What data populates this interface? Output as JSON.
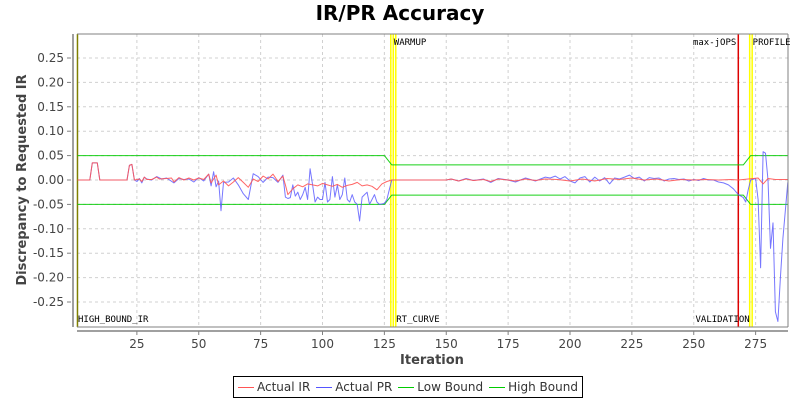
{
  "title": "IR/PR Accuracy",
  "legend": [
    {
      "label": "Actual IR",
      "color": "#ff5555"
    },
    {
      "label": "Actual PR",
      "color": "#5555ff"
    },
    {
      "label": "Low Bound",
      "color": "#00cc00"
    },
    {
      "label": "High Bound",
      "color": "#00cc00"
    }
  ],
  "chart_data": {
    "type": "line",
    "title": "IR/PR Accuracy",
    "xlabel": "Iteration",
    "ylabel": "Discrepancy to Requested IR",
    "xlim": [
      0,
      288
    ],
    "ylim": [
      -0.3,
      0.3
    ],
    "xticks": [
      25,
      50,
      75,
      100,
      125,
      150,
      175,
      200,
      225,
      250,
      275
    ],
    "yticks": [
      0.25,
      0.2,
      0.15,
      0.1,
      0.05,
      0.0,
      -0.05,
      -0.1,
      -0.15,
      -0.2,
      -0.25
    ],
    "ytick_labels": [
      "0.25",
      "0.20",
      "0.15",
      "0.10",
      "0.05",
      "0.00",
      "-0.05",
      "-0.10",
      "-0.15",
      "-0.20",
      "-0.25"
    ],
    "grid": true,
    "legend_position": "bottom",
    "markers": [
      {
        "label": "HIGH_BOUND_IR",
        "x": 1,
        "color": "#808000",
        "label_pos": "bottom"
      },
      {
        "label": "WARMUP",
        "x": 128,
        "color": "#ffff00",
        "label_pos": "top"
      },
      {
        "label": "RT_CURVE",
        "x": 129,
        "color": "#ffff00",
        "label_pos": "bottom"
      },
      {
        "label": "max-jOPS",
        "x": 268,
        "color": "#dd0000",
        "label_pos": "top-left"
      },
      {
        "label": "VALIDATION",
        "x": 273,
        "color": "#ffff00",
        "label_pos": "bottom-left"
      },
      {
        "label": "PROFILE",
        "x": 273,
        "color": "#ffff00",
        "label_pos": "top"
      }
    ],
    "series": [
      {
        "name": "Actual IR",
        "color": "#ff5555",
        "points": [
          [
            1,
            0
          ],
          [
            6,
            0
          ],
          [
            7,
            0.035
          ],
          [
            9,
            0.035
          ],
          [
            10,
            0
          ],
          [
            21,
            0
          ],
          [
            22,
            0.03
          ],
          [
            23,
            0.032
          ],
          [
            24,
            0
          ],
          [
            26,
            0.002
          ],
          [
            27,
            -0.003
          ],
          [
            28,
            0.006
          ],
          [
            29,
            0.001
          ],
          [
            31,
            0.001
          ],
          [
            33,
            0.006
          ],
          [
            34,
            0.002
          ],
          [
            37,
            0.003
          ],
          [
            39,
            0.004
          ],
          [
            40,
            -0.004
          ],
          [
            42,
            0.005
          ],
          [
            44,
            0
          ],
          [
            46,
            0.004
          ],
          [
            48,
            0
          ],
          [
            50,
            0.004
          ],
          [
            52,
            0.001
          ],
          [
            54,
            0.012
          ],
          [
            55,
            -0.006
          ],
          [
            57,
            0.01
          ],
          [
            58,
            -0.01
          ],
          [
            60,
            -0.002
          ],
          [
            62,
            -0.012
          ],
          [
            64,
            -0.004
          ],
          [
            66,
            0.005
          ],
          [
            68,
            -0.005
          ],
          [
            70,
            -0.015
          ],
          [
            72,
            0.002
          ],
          [
            74,
            -0.003
          ],
          [
            76,
            0.008
          ],
          [
            78,
            0.002
          ],
          [
            80,
            0.012
          ],
          [
            82,
            -0.003
          ],
          [
            84,
            0.008
          ],
          [
            85,
            -0.01
          ],
          [
            86,
            -0.03
          ],
          [
            88,
            -0.018
          ],
          [
            90,
            -0.01
          ],
          [
            92,
            -0.014
          ],
          [
            94,
            -0.008
          ],
          [
            96,
            -0.01
          ],
          [
            98,
            -0.012
          ],
          [
            100,
            -0.007
          ],
          [
            102,
            -0.01
          ],
          [
            104,
            -0.013
          ],
          [
            106,
            -0.009
          ],
          [
            108,
            -0.015
          ],
          [
            110,
            -0.011
          ],
          [
            112,
            -0.009
          ],
          [
            114,
            -0.005
          ],
          [
            116,
            -0.012
          ],
          [
            118,
            -0.01
          ],
          [
            120,
            -0.013
          ],
          [
            122,
            -0.02
          ],
          [
            124,
            -0.008
          ],
          [
            126,
            -0.003
          ],
          [
            128,
            0
          ],
          [
            150,
            0
          ],
          [
            152,
            0.002
          ],
          [
            155,
            -0.002
          ],
          [
            158,
            0.002
          ],
          [
            161,
            -0.001
          ],
          [
            165,
            0.001
          ],
          [
            168,
            -0.003
          ],
          [
            171,
            0.002
          ],
          [
            175,
            0
          ],
          [
            178,
            -0.002
          ],
          [
            182,
            0.002
          ],
          [
            186,
            -0.001
          ],
          [
            190,
            0.002
          ],
          [
            195,
            0.001
          ],
          [
            200,
            -0.002
          ],
          [
            205,
            0.002
          ],
          [
            210,
            -0.002
          ],
          [
            215,
            0.003
          ],
          [
            220,
            0.001
          ],
          [
            225,
            0.004
          ],
          [
            230,
            0
          ],
          [
            235,
            0.002
          ],
          [
            240,
            -0.002
          ],
          [
            245,
            0.001
          ],
          [
            250,
            0
          ],
          [
            255,
            0.001
          ],
          [
            260,
            0
          ],
          [
            265,
            0.001
          ],
          [
            268,
            0
          ],
          [
            272,
            0.002
          ],
          [
            276,
            0.004
          ],
          [
            278,
            -0.008
          ],
          [
            280,
            0.003
          ],
          [
            283,
            0.001
          ],
          [
            288,
            0.001
          ]
        ]
      },
      {
        "name": "Actual PR",
        "color": "#5555ff",
        "points": [
          [
            1,
            0
          ],
          [
            6,
            0
          ],
          [
            7,
            0.035
          ],
          [
            9,
            0.035
          ],
          [
            10,
            0
          ],
          [
            21,
            0
          ],
          [
            22,
            0.03
          ],
          [
            23,
            0.032
          ],
          [
            24,
            0
          ],
          [
            25,
            -0.003
          ],
          [
            26,
            0.003
          ],
          [
            27,
            -0.006
          ],
          [
            28,
            0.006
          ],
          [
            29,
            0.002
          ],
          [
            31,
            0
          ],
          [
            33,
            0.007
          ],
          [
            35,
            0.002
          ],
          [
            37,
            0.004
          ],
          [
            40,
            -0.006
          ],
          [
            42,
            0.003
          ],
          [
            44,
            0.001
          ],
          [
            46,
            0.002
          ],
          [
            48,
            -0.004
          ],
          [
            50,
            0.005
          ],
          [
            52,
            -0.002
          ],
          [
            54,
            0.012
          ],
          [
            55,
            -0.012
          ],
          [
            56,
            0.017
          ],
          [
            57,
            -0.014
          ],
          [
            58,
            -0.002
          ],
          [
            59,
            -0.063
          ],
          [
            60,
            -0.005
          ],
          [
            62,
            -0.004
          ],
          [
            64,
            0.004
          ],
          [
            66,
            -0.01
          ],
          [
            68,
            -0.028
          ],
          [
            70,
            -0.04
          ],
          [
            72,
            0.013
          ],
          [
            74,
            0.007
          ],
          [
            76,
            -0.005
          ],
          [
            78,
            0.006
          ],
          [
            80,
            0.005
          ],
          [
            82,
            -0.005
          ],
          [
            84,
            0.01
          ],
          [
            85,
            -0.035
          ],
          [
            86,
            -0.038
          ],
          [
            87,
            -0.036
          ],
          [
            88,
            -0.01
          ],
          [
            89,
            -0.033
          ],
          [
            90,
            -0.025
          ],
          [
            91,
            -0.04
          ],
          [
            92,
            -0.03
          ],
          [
            93,
            -0.015
          ],
          [
            94,
            -0.04
          ],
          [
            95,
            0.023
          ],
          [
            96,
            -0.01
          ],
          [
            97,
            -0.045
          ],
          [
            98,
            -0.035
          ],
          [
            99,
            -0.04
          ],
          [
            100,
            -0.04
          ],
          [
            101,
            -0.005
          ],
          [
            102,
            -0.045
          ],
          [
            103,
            -0.04
          ],
          [
            104,
            0.007
          ],
          [
            105,
            -0.035
          ],
          [
            106,
            -0.01
          ],
          [
            107,
            -0.04
          ],
          [
            108,
            -0.03
          ],
          [
            109,
            0.004
          ],
          [
            110,
            -0.04
          ],
          [
            111,
            -0.045
          ],
          [
            112,
            -0.03
          ],
          [
            113,
            -0.045
          ],
          [
            114,
            -0.05
          ],
          [
            115,
            -0.084
          ],
          [
            116,
            -0.035
          ],
          [
            117,
            -0.03
          ],
          [
            118,
            -0.025
          ],
          [
            119,
            -0.05
          ],
          [
            120,
            -0.04
          ],
          [
            121,
            -0.03
          ],
          [
            122,
            -0.045
          ],
          [
            123,
            -0.05
          ],
          [
            125,
            -0.048
          ],
          [
            126,
            -0.04
          ],
          [
            127,
            -0.02
          ],
          [
            128,
            0
          ],
          [
            150,
            0
          ],
          [
            152,
            0.002
          ],
          [
            155,
            -0.002
          ],
          [
            158,
            0.003
          ],
          [
            161,
            -0.001
          ],
          [
            165,
            0.002
          ],
          [
            168,
            -0.005
          ],
          [
            171,
            0.003
          ],
          [
            175,
            0
          ],
          [
            178,
            -0.004
          ],
          [
            182,
            0.004
          ],
          [
            186,
            -0.002
          ],
          [
            190,
            0.006
          ],
          [
            192,
            0.004
          ],
          [
            194,
            0.008
          ],
          [
            196,
            0.002
          ],
          [
            198,
            0.007
          ],
          [
            200,
            -0.002
          ],
          [
            202,
            -0.006
          ],
          [
            204,
            0.004
          ],
          [
            206,
            0.007
          ],
          [
            208,
            -0.004
          ],
          [
            210,
            0.006
          ],
          [
            212,
            -0.002
          ],
          [
            214,
            0.005
          ],
          [
            216,
            -0.008
          ],
          [
            218,
            0.004
          ],
          [
            220,
            0.002
          ],
          [
            222,
            0.006
          ],
          [
            224,
            0.01
          ],
          [
            226,
            0.003
          ],
          [
            228,
            0.006
          ],
          [
            230,
            -0.002
          ],
          [
            232,
            0.005
          ],
          [
            234,
            0.003
          ],
          [
            236,
            0.004
          ],
          [
            238,
            -0.002
          ],
          [
            240,
            0.002
          ],
          [
            242,
            0.003
          ],
          [
            244,
            0.001
          ],
          [
            246,
            0.002
          ],
          [
            248,
            -0.002
          ],
          [
            250,
            0.001
          ],
          [
            252,
            -0.001
          ],
          [
            254,
            0.003
          ],
          [
            256,
            0
          ],
          [
            258,
            0
          ],
          [
            260,
            -0.004
          ],
          [
            262,
            -0.006
          ],
          [
            264,
            -0.01
          ],
          [
            266,
            -0.018
          ],
          [
            268,
            -0.03
          ],
          [
            270,
            -0.036
          ],
          [
            271,
            -0.045
          ],
          [
            272,
            -0.02
          ],
          [
            273,
            0
          ],
          [
            275,
            0.003
          ],
          [
            276,
            -0.04
          ],
          [
            277,
            -0.18
          ],
          [
            278,
            0.058
          ],
          [
            279,
            0.055
          ],
          [
            280,
            0
          ],
          [
            281,
            -0.14
          ],
          [
            282,
            -0.088
          ],
          [
            283,
            -0.27
          ],
          [
            284,
            -0.29
          ],
          [
            285,
            -0.2
          ],
          [
            286,
            -0.12
          ],
          [
            288,
            -0.005
          ]
        ]
      },
      {
        "name": "Low Bound",
        "color": "#00cc00",
        "points": [
          [
            1,
            -0.05
          ],
          [
            125,
            -0.05
          ],
          [
            128,
            -0.031
          ],
          [
            270,
            -0.031
          ],
          [
            273,
            -0.05
          ],
          [
            288,
            -0.05
          ]
        ]
      },
      {
        "name": "High Bound",
        "color": "#00cc00",
        "points": [
          [
            1,
            0.05
          ],
          [
            125,
            0.05
          ],
          [
            128,
            0.031
          ],
          [
            270,
            0.031
          ],
          [
            273,
            0.05
          ],
          [
            288,
            0.05
          ]
        ]
      }
    ]
  }
}
